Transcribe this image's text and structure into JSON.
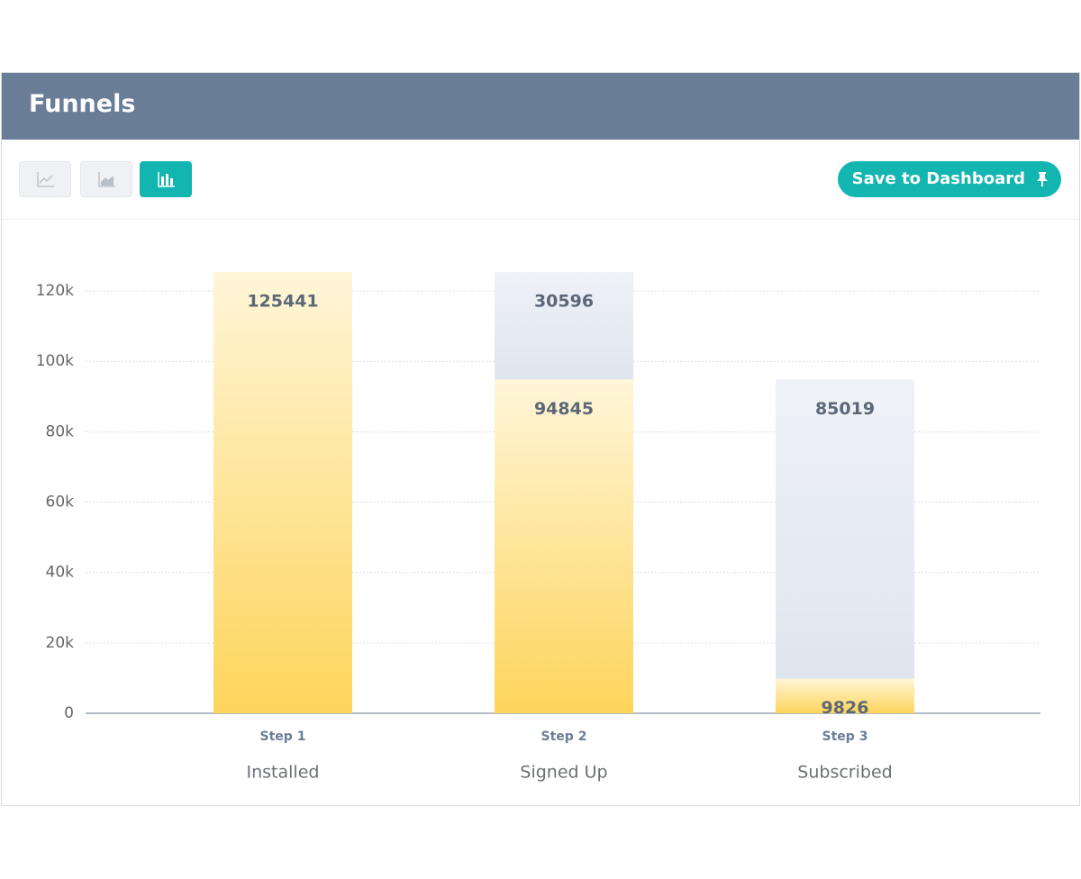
{
  "header": {
    "title": "Funnels"
  },
  "toolbar": {
    "save_button": "Save to Dashboard"
  },
  "chart_data": {
    "type": "bar",
    "stacked": true,
    "categories": [
      "Installed",
      "Signed Up",
      "Subscribed"
    ],
    "steps": [
      "Step 1",
      "Step 2",
      "Step 3"
    ],
    "series": [
      {
        "color": "#fed45a",
        "values": [
          125441,
          94845,
          9826
        ]
      },
      {
        "color": "#dfe5ef",
        "values": [
          null,
          30596,
          85019
        ]
      }
    ],
    "ylim": [
      0,
      130000
    ],
    "yticks": [
      0,
      {
        "value": 20000,
        "label": "20k"
      },
      {
        "value": 40000,
        "label": "40k"
      },
      {
        "value": 60000,
        "label": "60k"
      },
      {
        "value": 80000,
        "label": "80k"
      },
      {
        "value": 100000,
        "label": "100k"
      },
      {
        "value": 120000,
        "label": "120k"
      }
    ],
    "grid": true
  }
}
